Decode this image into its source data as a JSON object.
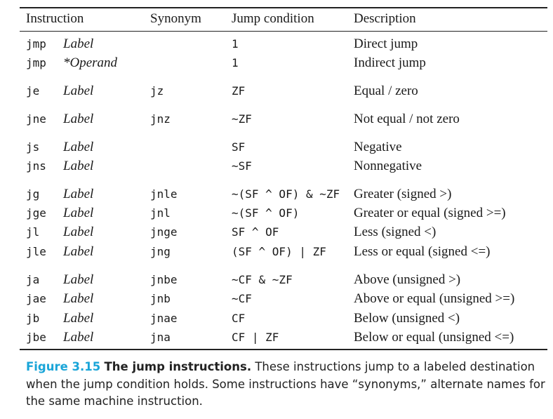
{
  "headers": {
    "instruction": "Instruction",
    "synonym": "Synonym",
    "condition": "Jump condition",
    "description": "Description"
  },
  "rows": [
    {
      "instr": "jmp",
      "operand": "Label",
      "synonym": "",
      "condition": "1",
      "description": "Direct jump"
    },
    {
      "instr": "jmp",
      "operand": "*Operand",
      "synonym": "",
      "condition": "1",
      "description": "Indirect jump"
    },
    {
      "instr": "je",
      "operand": "Label",
      "synonym": "jz",
      "condition": "ZF",
      "description": "Equal / zero"
    },
    {
      "instr": "jne",
      "operand": "Label",
      "synonym": "jnz",
      "condition": "~ZF",
      "description": "Not equal / not zero"
    },
    {
      "instr": "js",
      "operand": "Label",
      "synonym": "",
      "condition": "SF",
      "description": "Negative"
    },
    {
      "instr": "jns",
      "operand": "Label",
      "synonym": "",
      "condition": "~SF",
      "description": "Nonnegative"
    },
    {
      "instr": "jg",
      "operand": "Label",
      "synonym": "jnle",
      "condition": "~(SF ^ OF) & ~ZF",
      "description": "Greater (signed >)"
    },
    {
      "instr": "jge",
      "operand": "Label",
      "synonym": "jnl",
      "condition": "~(SF ^ OF)",
      "description": "Greater or equal (signed >=)"
    },
    {
      "instr": "jl",
      "operand": "Label",
      "synonym": "jnge",
      "condition": "SF ^ OF",
      "description": "Less (signed <)"
    },
    {
      "instr": "jle",
      "operand": "Label",
      "synonym": "jng",
      "condition": "(SF ^ OF) | ZF",
      "description": "Less or equal (signed <=)"
    },
    {
      "instr": "ja",
      "operand": "Label",
      "synonym": "jnbe",
      "condition": "~CF & ~ZF",
      "description": "Above (unsigned >)"
    },
    {
      "instr": "jae",
      "operand": "Label",
      "synonym": "jnb",
      "condition": "~CF",
      "description": "Above or equal (unsigned >=)"
    },
    {
      "instr": "jb",
      "operand": "Label",
      "synonym": "jnae",
      "condition": "CF",
      "description": "Below (unsigned <)"
    },
    {
      "instr": "jbe",
      "operand": "Label",
      "synonym": "jna",
      "condition": "CF | ZF",
      "description": "Below or equal (unsigned <=)"
    }
  ],
  "caption": {
    "number": "Figure 3.15",
    "title": "The jump instructions.",
    "text": " These instructions jump to a labeled destination when the jump condition holds. Some instructions have “synonyms,” alternate names for the same machine instruction."
  },
  "colors": {
    "figure_number": "#1aa5d8",
    "rule": "#222222"
  }
}
